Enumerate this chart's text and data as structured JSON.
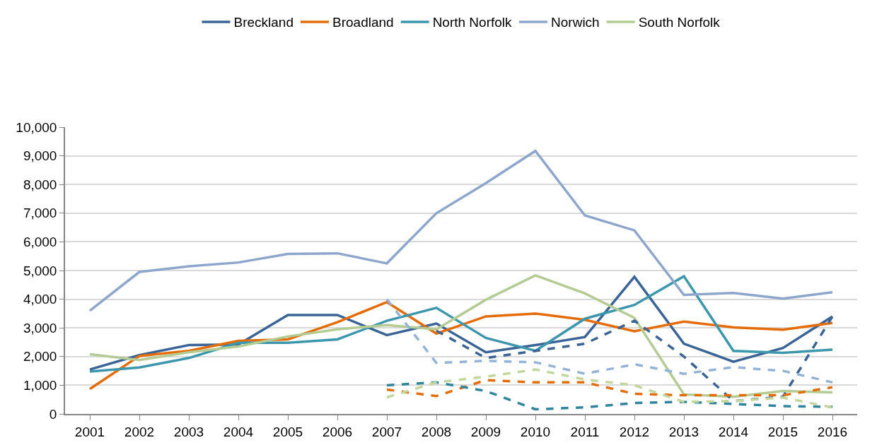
{
  "chart_data": {
    "type": "line",
    "categories": [
      "2001",
      "2002",
      "2003",
      "2004",
      "2005",
      "2006",
      "2007",
      "2008",
      "2009",
      "2010",
      "2011",
      "2012",
      "2013",
      "2014",
      "2015",
      "2016"
    ],
    "ylim": [
      0,
      10000
    ],
    "yticks": [
      {
        "value": 0,
        "label": "0"
      },
      {
        "value": 1000,
        "label": "1,000"
      },
      {
        "value": 2000,
        "label": "2,000"
      },
      {
        "value": 3000,
        "label": "3,000"
      },
      {
        "value": 4000,
        "label": "4,000"
      },
      {
        "value": 5000,
        "label": "5,000"
      },
      {
        "value": 6000,
        "label": "6,000"
      },
      {
        "value": 7000,
        "label": "7,000"
      },
      {
        "value": 8000,
        "label": "8,000"
      },
      {
        "value": 9000,
        "label": "9,000"
      },
      {
        "value": 10000,
        "label": "10,000"
      }
    ],
    "grid": "y",
    "legend": "top",
    "marker": "none",
    "line_style": "solid",
    "series": [
      {
        "name": "Breckland",
        "color": "#3a6496",
        "values": [
          1550,
          2050,
          2400,
          2420,
          3450,
          3450,
          2750,
          3150,
          2150,
          2400,
          2680,
          4780,
          2450,
          1820,
          2300,
          3400
        ]
      },
      {
        "name": "Broadland",
        "color": "#e46c0a",
        "values": [
          870,
          2020,
          2200,
          2550,
          2600,
          3200,
          3900,
          2800,
          3400,
          3500,
          3280,
          2880,
          3220,
          3020,
          2940,
          3170
        ]
      },
      {
        "name": "North Norfolk",
        "color": "#3c97ad",
        "values": [
          1480,
          1620,
          1950,
          2480,
          2480,
          2600,
          3250,
          3700,
          2650,
          2200,
          3320,
          3800,
          4800,
          2200,
          2130,
          2240
        ]
      },
      {
        "name": "Norwich",
        "color": "#8ea6cc",
        "values": [
          3600,
          4950,
          5150,
          5280,
          5580,
          5600,
          5250,
          7000,
          8050,
          9170,
          6920,
          6400,
          4150,
          4220,
          4020,
          4240
        ]
      },
      {
        "name": "South Norfolk",
        "color": "#b4cc94",
        "values": [
          2080,
          1880,
          2150,
          2350,
          2700,
          2950,
          3100,
          2950,
          3980,
          4830,
          4200,
          3350,
          680,
          600,
          800,
          750
        ]
      },
      {
        "color": "#3a6496",
        "line_style": "dashed",
        "values": [
          null,
          null,
          null,
          null,
          null,
          null,
          null,
          2900,
          1950,
          2200,
          2450,
          3250,
          2000,
          450,
          600,
          3400
        ]
      },
      {
        "color": "#e46c0a",
        "line_style": "dashed",
        "values": [
          null,
          null,
          null,
          null,
          null,
          null,
          850,
          620,
          1180,
          1100,
          1100,
          700,
          650,
          650,
          650,
          930
        ]
      },
      {
        "color": "#31859c",
        "line_style": "dashed",
        "values": [
          null,
          null,
          null,
          null,
          null,
          null,
          1000,
          1100,
          800,
          160,
          230,
          380,
          420,
          350,
          270,
          250
        ]
      },
      {
        "color": "#95b3d7",
        "line_style": "dashed",
        "values": [
          null,
          null,
          null,
          null,
          null,
          null,
          4000,
          1780,
          1850,
          1800,
          1400,
          1730,
          1400,
          1630,
          1500,
          1100
        ]
      },
      {
        "color": "#c3d69b",
        "line_style": "dashed",
        "values": [
          null,
          null,
          null,
          null,
          null,
          null,
          580,
          1100,
          1300,
          1550,
          1200,
          1000,
          420,
          450,
          570,
          230
        ]
      }
    ]
  }
}
